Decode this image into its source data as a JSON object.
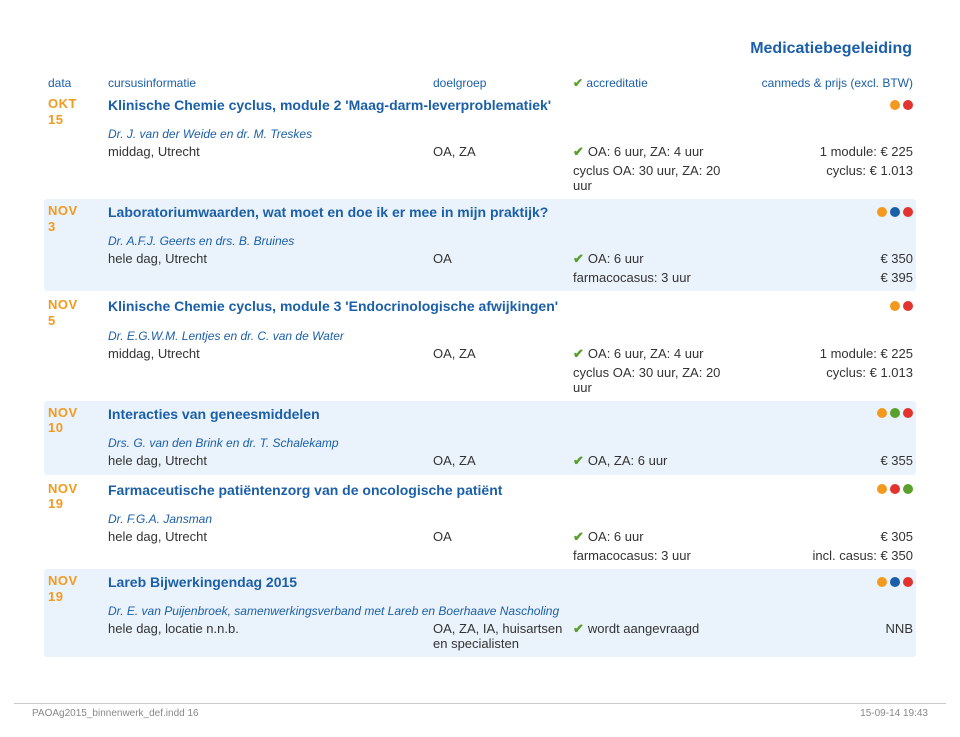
{
  "section_title": "Medicatiebegeleiding",
  "colors": {
    "blue": "#1b5fa8",
    "orange": "#f39a1e",
    "red": "#e2332e",
    "green": "#5aa02c",
    "lightblue_bg": "#eaf3fb"
  },
  "header": {
    "c0": "data",
    "c1": "cursusinformatie",
    "c2": "doelgroep",
    "c3": "accreditatie",
    "c4": "canmeds & prijs (excl. BTW)"
  },
  "courses": [
    {
      "month": "OKT",
      "day": "15",
      "title": "Klinische Chemie cyclus, module 2 'Maag-darm-leverproblematiek'",
      "dots": [
        "#f39a1e",
        "#e2332e"
      ],
      "instructor": "Dr. J. van der Weide en dr. M. Treskes",
      "shaded": false,
      "details": [
        {
          "c1": "middag, Utrecht",
          "c2": "OA, ZA",
          "c3": "OA: 6 uur, ZA: 4 uur",
          "c4": "1 module: € 225"
        },
        {
          "c1": "",
          "c2": "",
          "c3": "cyclus OA: 30 uur, ZA: 20 uur",
          "noCheck": true,
          "c4": "cyclus: € 1.013"
        }
      ]
    },
    {
      "month": "NOV",
      "day": "3",
      "title": "Laboratoriumwaarden, wat moet en doe ik er mee in mijn praktijk?",
      "dots": [
        "#f39a1e",
        "#1b5fa8",
        "#e2332e"
      ],
      "instructor": "Dr. A.F.J. Geerts en drs. B. Bruines",
      "shaded": true,
      "details": [
        {
          "c1": "hele dag, Utrecht",
          "c2": "OA",
          "c3": "OA: 6 uur",
          "c4": "€ 350"
        },
        {
          "c1": "",
          "c2": "",
          "c3": "farmacocasus: 3 uur",
          "noCheck": true,
          "c4": "€ 395"
        }
      ]
    },
    {
      "month": "NOV",
      "day": "5",
      "title": "Klinische Chemie cyclus, module 3 'Endocrinologische afwijkingen'",
      "dots": [
        "#f39a1e",
        "#e2332e"
      ],
      "instructor": "Dr. E.G.W.M. Lentjes en dr. C. van de Water",
      "shaded": false,
      "details": [
        {
          "c1": "middag, Utrecht",
          "c2": "OA, ZA",
          "c3": "OA: 6 uur, ZA: 4 uur",
          "c4": "1 module: € 225"
        },
        {
          "c1": "",
          "c2": "",
          "c3": "cyclus OA: 30 uur, ZA: 20 uur",
          "noCheck": true,
          "c4": "cyclus: € 1.013"
        }
      ]
    },
    {
      "month": "NOV",
      "day": "10",
      "title": "Interacties van geneesmiddelen",
      "dots": [
        "#f39a1e",
        "#5aa02c",
        "#e2332e"
      ],
      "instructor": "Drs. G. van den Brink en dr. T. Schalekamp",
      "shaded": true,
      "details": [
        {
          "c1": "hele dag, Utrecht",
          "c2": "OA, ZA",
          "c3": "OA, ZA: 6 uur",
          "c4": "€ 355"
        }
      ]
    },
    {
      "month": "NOV",
      "day": "19",
      "title": "Farmaceutische patiëntenzorg van de oncologische patiënt",
      "dots": [
        "#f39a1e",
        "#e2332e",
        "#5aa02c"
      ],
      "instructor": "Dr. F.G.A. Jansman",
      "shaded": false,
      "details": [
        {
          "c1": "hele dag, Utrecht",
          "c2": "OA",
          "c3": "OA: 6 uur",
          "c4": "€ 305"
        },
        {
          "c1": "",
          "c2": "",
          "c3": "farmacocasus: 3 uur",
          "noCheck": true,
          "c4": "incl. casus: € 350"
        }
      ]
    },
    {
      "month": "NOV",
      "day": "19",
      "title": "Lareb Bijwerkingendag 2015",
      "dots": [
        "#f39a1e",
        "#1b5fa8",
        "#e2332e"
      ],
      "instructor": "Dr. E. van Puijenbroek, samenwerkingsverband met Lareb en Boerhaave Nascholing",
      "shaded": true,
      "details": [
        {
          "c1": "hele dag, locatie n.n.b.",
          "c2": "OA, ZA, IA, huisartsen en specialisten",
          "c3": "wordt aangevraagd",
          "c4": "NNB"
        }
      ]
    }
  ],
  "footer": {
    "left": "PAOAg2015_binnenwerk_def.indd   16",
    "right": "15-09-14   19:43"
  }
}
